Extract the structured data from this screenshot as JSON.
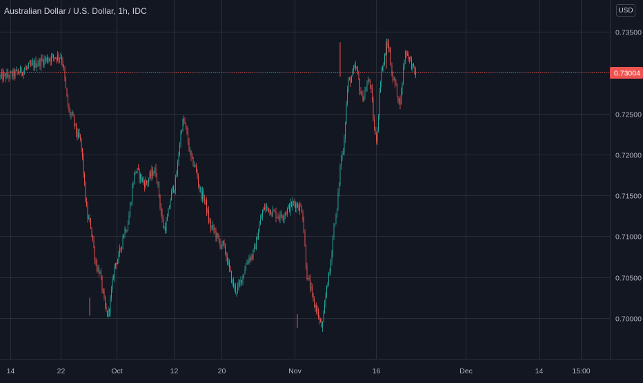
{
  "header": {
    "title": "Australian Dollar / U.S. Dollar, 1h, IDC",
    "currency": "USD"
  },
  "colors": {
    "background": "#131722",
    "grid": "#2a2e39",
    "up": "#26a69a",
    "down": "#ef5350",
    "text": "#b2b5be",
    "price_label_bg": "#ef5350",
    "price_line": "#ef5350"
  },
  "chart_data": {
    "type": "candlestick",
    "symbol": "AUDUSD",
    "interval": "1h",
    "source": "IDC",
    "y_axis": {
      "ticks": [
        0.735,
        0.73,
        0.725,
        0.72,
        0.715,
        0.71,
        0.705,
        0.7
      ],
      "tick_labels": [
        "0.73500",
        "0.73000",
        "0.72500",
        "0.72000",
        "0.71500",
        "0.71000",
        "0.70500",
        "0.70000"
      ],
      "range": [
        0.6955,
        0.738
      ]
    },
    "x_axis": {
      "tick_labels": [
        "14",
        "22",
        "Oct",
        "12",
        "20",
        "Nov",
        "16",
        "Dec",
        "14",
        "15:00"
      ]
    },
    "last_price": 0.73004,
    "last_price_label": "0.73004",
    "price_path": [
      [
        "14",
        0.7295
      ],
      [
        "22",
        0.732
      ],
      [
        "22",
        0.725
      ],
      [
        "22",
        0.722
      ],
      [
        "22",
        0.712
      ],
      [
        "22",
        0.706
      ],
      [
        "22",
        0.7005
      ],
      [
        "Oct",
        0.707
      ],
      [
        "Oct",
        0.711
      ],
      [
        "Oct",
        0.718
      ],
      [
        "Oct",
        0.7165
      ],
      [
        "Oct",
        0.718
      ],
      [
        "Oct",
        0.711
      ],
      [
        "12",
        0.716
      ],
      [
        "12",
        0.724
      ],
      [
        "12",
        0.719
      ],
      [
        "12",
        0.715
      ],
      [
        "12",
        0.711
      ],
      [
        "20",
        0.709
      ],
      [
        "20",
        0.7035
      ],
      [
        "20",
        0.7075
      ],
      [
        "20",
        0.7135
      ],
      [
        "20",
        0.7125
      ],
      [
        "Nov",
        0.714
      ],
      [
        "Nov",
        0.7135
      ],
      [
        "Nov",
        0.7045
      ],
      [
        "Nov",
        0.7015
      ],
      [
        "Nov",
        0.699
      ],
      [
        "Nov",
        0.705
      ],
      [
        "Nov",
        0.712
      ],
      [
        "Nov",
        0.72
      ],
      [
        "Nov",
        0.729
      ],
      [
        "Nov",
        0.7305
      ],
      [
        "Nov",
        0.727
      ],
      [
        "Nov",
        0.729
      ],
      [
        "16",
        0.722
      ],
      [
        "16",
        0.7305
      ],
      [
        "16",
        0.7335
      ],
      [
        "16",
        0.729
      ],
      [
        "16",
        0.7265
      ],
      [
        "16",
        0.7325
      ],
      [
        "16",
        0.73
      ]
    ]
  }
}
